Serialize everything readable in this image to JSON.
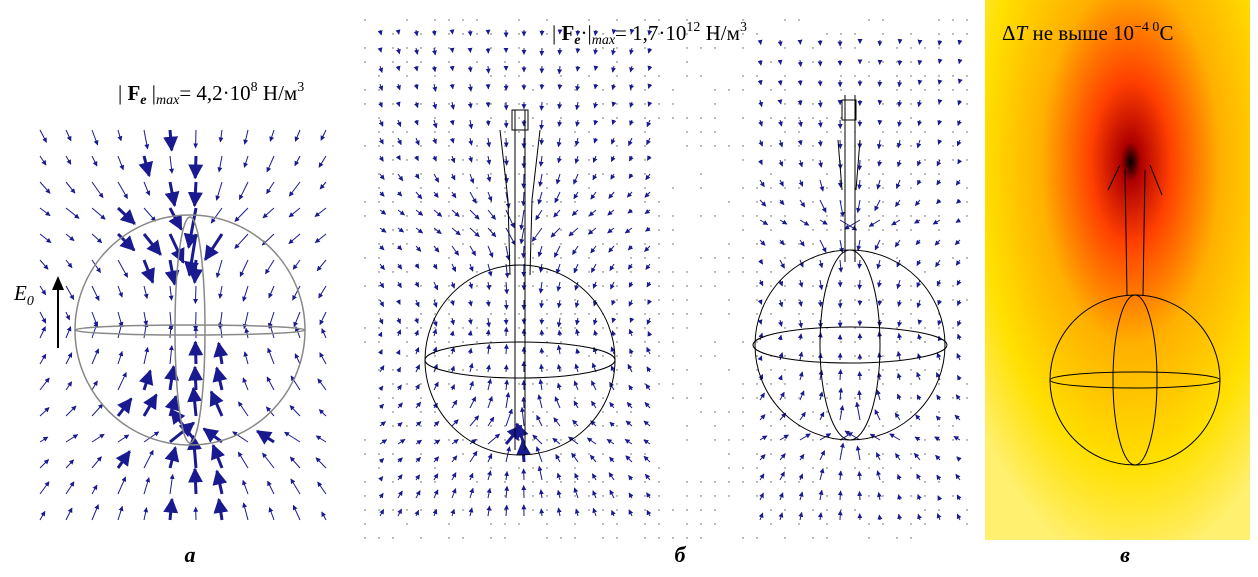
{
  "panels": [
    {
      "label": "а",
      "annotation": [
        "| ",
        "F",
        "e",
        " |",
        "max",
        "= 4,2·10",
        "8",
        " Н/м",
        "3"
      ],
      "field_label": {
        "symbol": "E",
        "sub": "0"
      }
    },
    {
      "label": "б",
      "annotation": [
        "| ",
        "F",
        "e",
        "·|",
        "max",
        "= 1,7·10",
        "12",
        " Н/м",
        "3"
      ]
    },
    {
      "label": "в",
      "annotation": [
        "Δ",
        "T",
        " не выше 10",
        "−4 0",
        "C"
      ]
    }
  ]
}
